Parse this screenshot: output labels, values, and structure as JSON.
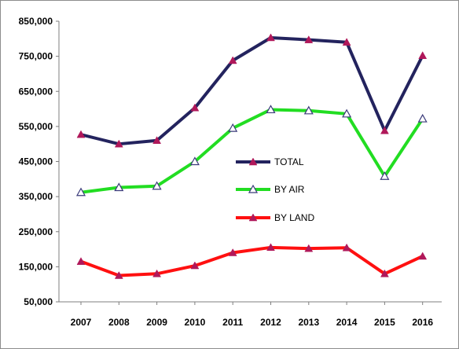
{
  "chart_data": {
    "type": "line",
    "categories": [
      "2007",
      "2008",
      "2009",
      "2010",
      "2011",
      "2012",
      "2013",
      "2014",
      "2015",
      "2016"
    ],
    "y_ticks": [
      50000,
      150000,
      250000,
      350000,
      450000,
      550000,
      650000,
      750000,
      850000
    ],
    "y_tick_labels": [
      "50,000",
      "150,000",
      "250,000",
      "350,000",
      "450,000",
      "550,000",
      "650,000",
      "750,000",
      "850,000"
    ],
    "ylim": [
      50000,
      850000
    ],
    "grid": false,
    "legend_position": "center",
    "series": [
      {
        "name": "TOTAL",
        "color": "#23235e",
        "marker_color": "#b0185a",
        "marker": "filled-triangle",
        "values": [
          527000,
          500000,
          510000,
          603000,
          738000,
          803000,
          797000,
          790000,
          538000,
          752000
        ]
      },
      {
        "name": "BY AIR",
        "color": "#22dd22",
        "marker_color": "#ffffff",
        "marker": "open-triangle",
        "values": [
          362000,
          376000,
          380000,
          450000,
          545000,
          598000,
          595000,
          586000,
          408000,
          572000
        ]
      },
      {
        "name": "BY LAND",
        "color": "#ff1010",
        "marker_color": "#b0185a",
        "marker": "filled-triangle",
        "values": [
          165000,
          125000,
          130000,
          153000,
          190000,
          205000,
          202000,
          204000,
          130000,
          180000
        ]
      }
    ]
  }
}
